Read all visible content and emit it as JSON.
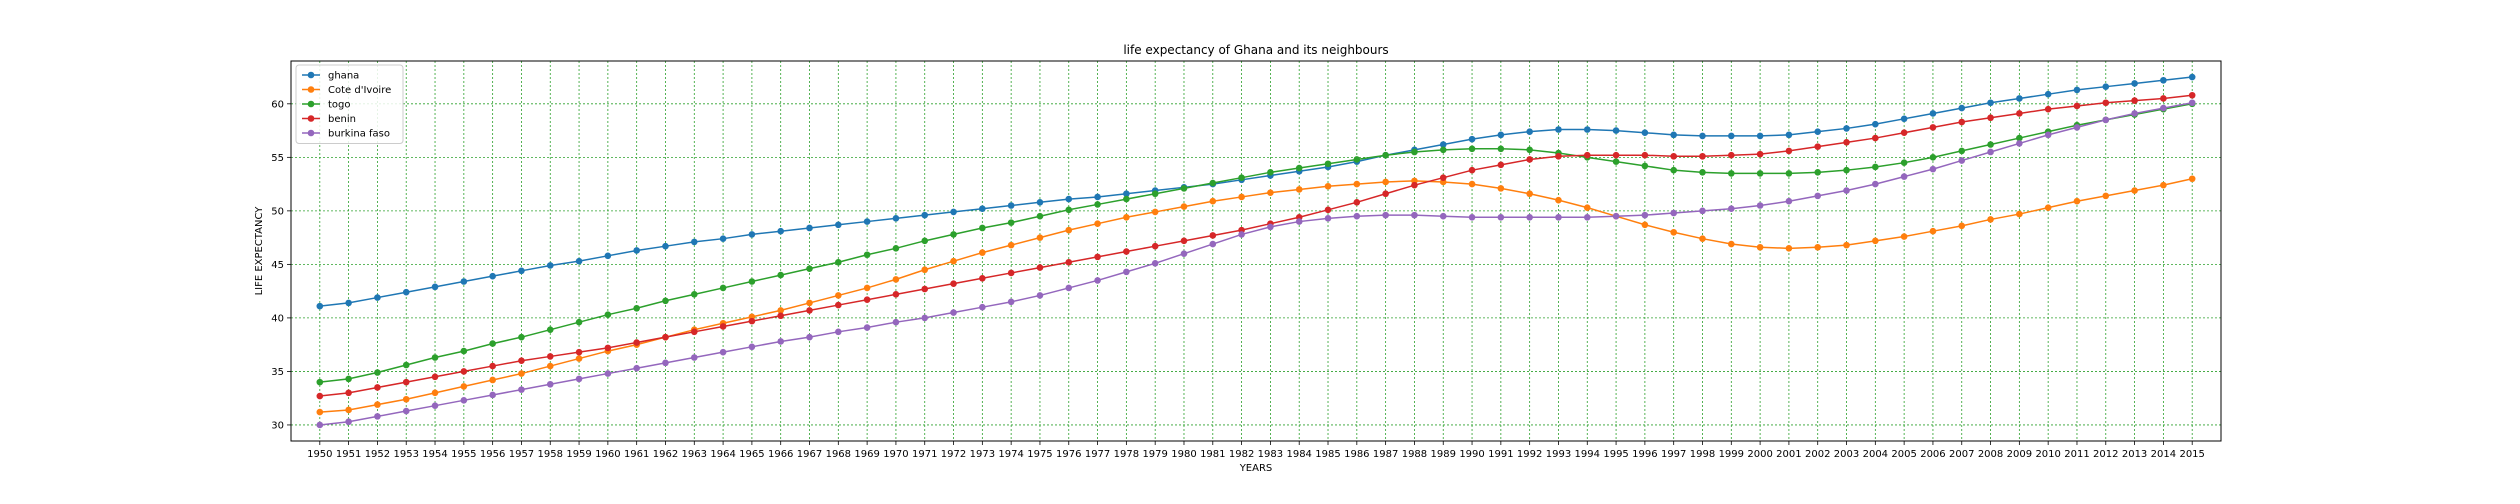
{
  "chart_data": {
    "type": "line",
    "title": "life expectancy of Ghana and its neighbours",
    "xlabel": "YEARS",
    "ylabel": "LIFE EXPECTANCY",
    "x": [
      1950,
      1951,
      1952,
      1953,
      1954,
      1955,
      1956,
      1957,
      1958,
      1959,
      1960,
      1961,
      1962,
      1963,
      1964,
      1965,
      1966,
      1967,
      1968,
      1969,
      1970,
      1971,
      1972,
      1973,
      1974,
      1975,
      1976,
      1977,
      1978,
      1979,
      1980,
      1981,
      1982,
      1983,
      1984,
      1985,
      1986,
      1987,
      1988,
      1989,
      1990,
      1991,
      1992,
      1993,
      1994,
      1995,
      1996,
      1997,
      1998,
      1999,
      2000,
      2001,
      2002,
      2003,
      2004,
      2005,
      2006,
      2007,
      2008,
      2009,
      2010,
      2011,
      2012,
      2013,
      2014,
      2015
    ],
    "xlim": [
      1949,
      2016
    ],
    "ylim": [
      28.5,
      64
    ],
    "yticks": [
      30,
      35,
      40,
      45,
      50,
      55,
      60
    ],
    "grid": true,
    "grid_color": "#2ca02c",
    "legend_position": "top-left",
    "series": [
      {
        "name": "ghana",
        "color": "#1f77b4",
        "values": [
          41.1,
          41.4,
          41.9,
          42.4,
          42.9,
          43.4,
          43.9,
          44.4,
          44.9,
          45.3,
          45.8,
          46.3,
          46.7,
          47.1,
          47.4,
          47.8,
          48.1,
          48.4,
          48.7,
          49.0,
          49.3,
          49.6,
          49.9,
          50.2,
          50.5,
          50.8,
          51.1,
          51.3,
          51.6,
          51.9,
          52.2,
          52.5,
          52.9,
          53.3,
          53.7,
          54.1,
          54.6,
          55.2,
          55.7,
          56.2,
          56.7,
          57.1,
          57.4,
          57.6,
          57.6,
          57.5,
          57.3,
          57.1,
          57.0,
          57.0,
          57.0,
          57.1,
          57.4,
          57.7,
          58.1,
          58.6,
          59.1,
          59.6,
          60.1,
          60.5,
          60.9,
          61.3,
          61.6,
          61.9,
          62.2,
          62.5
        ]
      },
      {
        "name": "Cote d'Ivoire",
        "color": "#ff7f0e",
        "values": [
          31.2,
          31.4,
          31.9,
          32.4,
          33.0,
          33.6,
          34.2,
          34.8,
          35.5,
          36.2,
          36.9,
          37.5,
          38.2,
          38.9,
          39.5,
          40.1,
          40.7,
          41.4,
          42.1,
          42.8,
          43.6,
          44.5,
          45.3,
          46.1,
          46.8,
          47.5,
          48.2,
          48.8,
          49.4,
          49.9,
          50.4,
          50.9,
          51.3,
          51.7,
          52.0,
          52.3,
          52.5,
          52.7,
          52.8,
          52.7,
          52.5,
          52.1,
          51.6,
          51.0,
          50.3,
          49.5,
          48.7,
          48.0,
          47.4,
          46.9,
          46.6,
          46.5,
          46.6,
          46.8,
          47.2,
          47.6,
          48.1,
          48.6,
          49.2,
          49.7,
          50.3,
          50.9,
          51.4,
          51.9,
          52.4,
          53.0
        ]
      },
      {
        "name": "togo",
        "color": "#2ca02c",
        "values": [
          34.0,
          34.3,
          34.9,
          35.6,
          36.3,
          36.9,
          37.6,
          38.2,
          38.9,
          39.6,
          40.3,
          40.9,
          41.6,
          42.2,
          42.8,
          43.4,
          44.0,
          44.6,
          45.2,
          45.9,
          46.5,
          47.2,
          47.8,
          48.4,
          48.9,
          49.5,
          50.1,
          50.6,
          51.1,
          51.6,
          52.1,
          52.6,
          53.1,
          53.6,
          54.0,
          54.4,
          54.8,
          55.2,
          55.5,
          55.7,
          55.8,
          55.8,
          55.7,
          55.4,
          55.0,
          54.6,
          54.2,
          53.8,
          53.6,
          53.5,
          53.5,
          53.5,
          53.6,
          53.8,
          54.1,
          54.5,
          55.0,
          55.6,
          56.2,
          56.8,
          57.4,
          58.0,
          58.5,
          59.0,
          59.5,
          60.0
        ]
      },
      {
        "name": "benin",
        "color": "#d62728",
        "values": [
          32.7,
          33.0,
          33.5,
          34.0,
          34.5,
          35.0,
          35.5,
          36.0,
          36.4,
          36.8,
          37.2,
          37.7,
          38.2,
          38.7,
          39.2,
          39.7,
          40.2,
          40.7,
          41.2,
          41.7,
          42.2,
          42.7,
          43.2,
          43.7,
          44.2,
          44.7,
          45.2,
          45.7,
          46.2,
          46.7,
          47.2,
          47.7,
          48.2,
          48.8,
          49.4,
          50.1,
          50.8,
          51.6,
          52.4,
          53.1,
          53.8,
          54.3,
          54.8,
          55.1,
          55.2,
          55.2,
          55.2,
          55.1,
          55.1,
          55.2,
          55.3,
          55.6,
          56.0,
          56.4,
          56.8,
          57.3,
          57.8,
          58.3,
          58.7,
          59.1,
          59.5,
          59.8,
          60.1,
          60.3,
          60.5,
          60.8
        ]
      },
      {
        "name": "burkina faso",
        "color": "#9467bd",
        "values": [
          30.0,
          30.3,
          30.8,
          31.3,
          31.8,
          32.3,
          32.8,
          33.3,
          33.8,
          34.3,
          34.8,
          35.3,
          35.8,
          36.3,
          36.8,
          37.3,
          37.8,
          38.2,
          38.7,
          39.1,
          39.6,
          40.0,
          40.5,
          41.0,
          41.5,
          42.1,
          42.8,
          43.5,
          44.3,
          45.1,
          46.0,
          46.9,
          47.8,
          48.5,
          49.0,
          49.3,
          49.5,
          49.6,
          49.6,
          49.5,
          49.4,
          49.4,
          49.4,
          49.4,
          49.4,
          49.5,
          49.6,
          49.8,
          50.0,
          50.2,
          50.5,
          50.9,
          51.4,
          51.9,
          52.5,
          53.2,
          53.9,
          54.7,
          55.5,
          56.3,
          57.1,
          57.8,
          58.5,
          59.1,
          59.6,
          60.1
        ]
      }
    ]
  }
}
